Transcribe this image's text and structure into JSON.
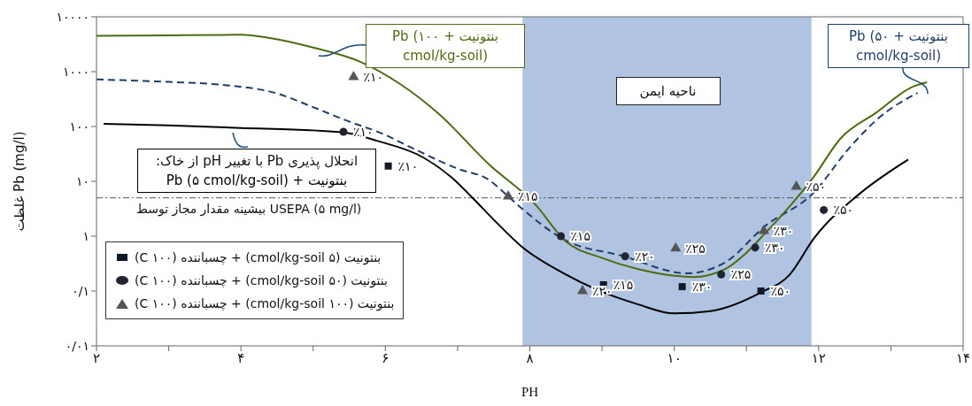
{
  "chart_data": {
    "type": "line",
    "xlabel": "PH",
    "ylabel": "غلظت Pb (mg/l)",
    "log": "y",
    "legend": "bottom left",
    "marker": "none",
    "annotations": [
      "انحلال پذیری Pb با تغییر pH از خاک:",
      {
        "text": "٪۱۰",
        "x": 6.04,
        "y": 19
      },
      {
        "text": "٪۱۵",
        "x": 9.02,
        "y": 0.13
      },
      {
        "text": "٪۳۰",
        "x": 10.11,
        "y": 0.12
      },
      {
        "text": "٪۵۰",
        "x": 11.2,
        "y": 0.1
      },
      {
        "text": "٪۱۰",
        "x": 5.42,
        "y": 80
      },
      {
        "text": "٪۱۵",
        "x": 8.43,
        "y": 1
      },
      {
        "text": "٪۲۰",
        "x": 9.32,
        "y": 0.43
      },
      {
        "text": "٪۲۵",
        "x": 10.65,
        "y": 0.2
      },
      {
        "text": "٪۳۰",
        "x": 11.12,
        "y": 0.62
      },
      {
        "text": "٪۵۰",
        "x": 12.07,
        "y": 3
      },
      {
        "text": "٪۱۰",
        "x": 5.56,
        "y": 800
      },
      {
        "text": "٪۱۵",
        "x": 7.7,
        "y": 5.3
      },
      {
        "text": "٪۲۰",
        "x": 8.73,
        "y": 0.1
      },
      {
        "text": "٪۲۵",
        "x": 10.02,
        "y": 0.6
      },
      {
        "text": "٪۳۰",
        "x": 11.24,
        "y": 1.25
      },
      {
        "text": "٪۵۰",
        "x": 11.69,
        "y": 8
      }
    ],
    "xlim": [
      2,
      14
    ],
    "xticks": [
      {
        "value": 2,
        "label": "۲"
      },
      {
        "value": 3,
        "label": null
      },
      {
        "value": 4,
        "label": "۴"
      },
      {
        "value": 5,
        "label": null
      },
      {
        "value": 6,
        "label": "۶"
      },
      {
        "value": 7,
        "label": null
      },
      {
        "value": 8,
        "label": "۸"
      },
      {
        "value": 9,
        "label": null
      },
      {
        "value": 10,
        "label": "۱۰"
      },
      {
        "value": 11,
        "label": null
      },
      {
        "value": 12,
        "label": "۱۲"
      },
      {
        "value": 13,
        "label": null
      },
      {
        "value": 14,
        "label": "۱۴"
      }
    ],
    "ylim": [
      0.01,
      10000
    ],
    "yticks": [
      {
        "value": 0.01,
        "label": "۰/۰۱"
      },
      {
        "value": 0.1,
        "label": "۰/۱"
      },
      {
        "value": 1,
        "label": "۱"
      },
      {
        "value": 10,
        "label": "۱۰"
      },
      {
        "value": 100,
        "label": "۱۰۰"
      },
      {
        "value": 1000,
        "label": "۱۰۰۰"
      },
      {
        "value": 10000,
        "label": "۱۰۰۰۰"
      }
    ],
    "bands": [
      {
        "axis": "x",
        "from": 7.9,
        "to": 11.9,
        "label": "ناحیه ایمن",
        "color": "#b0c4e2"
      }
    ],
    "ref_lines": [
      {
        "axis": "y",
        "value": 5,
        "label": "بیشینه مقدار مجاز توسط USEPA (۵ mg/l)",
        "color": "#555555"
      }
    ],
    "series": [
      {
        "name": "بنتونیت + Pb (۵ cmol/kg-soil)",
        "color": "#000000",
        "line_style": "solid",
        "x": [
          2.1,
          3,
          4,
          5,
          5.45,
          5.88,
          6.53,
          6.96,
          7.22,
          7.5,
          7.89,
          8.5,
          8.9,
          9.5,
          10,
          10.5,
          11.2,
          11.6,
          11.93,
          12.55,
          13.24
        ],
        "values": [
          112,
          105,
          94,
          85,
          77,
          55,
          27,
          10.5,
          4.8,
          2,
          0.64,
          0.2,
          0.11,
          0.057,
          0.039,
          0.043,
          0.094,
          0.2,
          0.9,
          5.7,
          25
        ]
      },
      {
        "name": "بنتونیت + Pb (۵۰ cmol/kg-soil)",
        "color": "#1f3d6b",
        "line_style": "dashed",
        "x": [
          2,
          3,
          3.7,
          4.5,
          5,
          5.45,
          6,
          6.3,
          7,
          7.44,
          7.7,
          7.89,
          8.45,
          9.3,
          10.17,
          10.7,
          11.25,
          11.93,
          12.42,
          12.85,
          13.37
        ],
        "values": [
          720,
          650,
          580,
          400,
          225,
          130,
          70,
          45,
          17,
          10.5,
          5.3,
          3.2,
          0.9,
          0.43,
          0.21,
          0.33,
          1.5,
          6.2,
          40,
          150,
          410
        ]
      },
      {
        "name": "بنتونیت + Pb (۱۰۰ cmol/kg-soil)",
        "color": "#4d6b10",
        "line_style": "solid",
        "x": [
          2,
          3,
          4,
          4.4,
          5,
          5.66,
          6.2,
          6.74,
          7.44,
          8.06,
          8.5,
          9,
          9.5,
          10,
          10.26,
          10.7,
          11,
          11.25,
          11.5,
          11.93,
          12.3,
          12.8,
          13.3,
          13.5
        ],
        "values": [
          4500,
          4600,
          4700,
          4100,
          2750,
          1500,
          600,
          170,
          20,
          4,
          0.8,
          0.4,
          0.25,
          0.19,
          0.18,
          0.25,
          0.5,
          1.1,
          2.5,
          12,
          60,
          180,
          530,
          640
        ]
      },
      {
        "type": "scatter",
        "marker": "square",
        "name": "بنتونیت (۵ cmol/kg-soil) + چسباننده (۱۰۰ C)",
        "color": "#111827",
        "x": [
          6.04,
          9.02,
          10.11,
          11.2
        ],
        "values": [
          19,
          0.13,
          0.12,
          0.1
        ]
      },
      {
        "type": "scatter",
        "marker": "circle",
        "name": "بنتونیت (۵۰ cmol/kg-soil) + چسباننده (۱۰۰ C)",
        "color": "#1f2430",
        "x": [
          5.42,
          8.43,
          9.32,
          10.65,
          11.12,
          12.07
        ],
        "values": [
          80,
          1,
          0.43,
          0.2,
          0.62,
          3
        ]
      },
      {
        "type": "scatter",
        "marker": "triangle",
        "name": "بنتونیت (۱۰۰ cmol/kg-soil) + چسباننده (۱۰۰ C)",
        "color": "#555555",
        "x": [
          5.56,
          7.7,
          8.73,
          10.02,
          11.24,
          11.69
        ],
        "values": [
          800,
          5.3,
          0.1,
          0.6,
          1.25,
          8
        ]
      }
    ]
  }
}
